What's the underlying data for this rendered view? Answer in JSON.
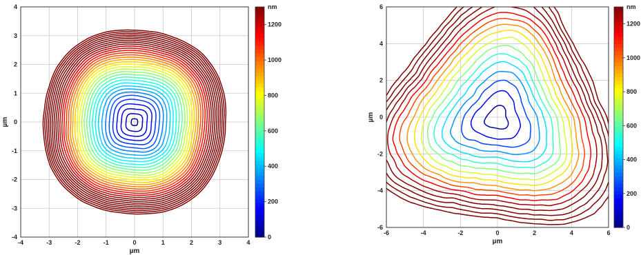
{
  "chart_data": [
    {
      "type": "contour",
      "xlabel": "µm",
      "ylabel": "µm",
      "xlim": [
        -4,
        4
      ],
      "ylim": [
        -4,
        4
      ],
      "xticks": [
        -4,
        -3,
        -2,
        -1,
        0,
        1,
        2,
        3,
        4
      ],
      "yticks": [
        -4,
        -3,
        -2,
        -1,
        0,
        1,
        2,
        3,
        4
      ],
      "grid": true,
      "colorbar": {
        "unit": "nm",
        "range": [
          0,
          1300
        ],
        "ticks": [
          0,
          200,
          400,
          600,
          800,
          1000,
          1200
        ]
      },
      "contour_interval_nm": 50,
      "minimum_at": [
        0,
        0
      ],
      "minimum_nm": 0,
      "max_corner_nm": 1300,
      "colormap": "jet"
    },
    {
      "type": "contour",
      "xlabel": "µm",
      "ylabel": "µm",
      "xlim": [
        -6,
        6
      ],
      "ylim": [
        -6,
        6
      ],
      "xticks": [
        -6,
        -4,
        -2,
        0,
        2,
        4,
        6
      ],
      "yticks": [
        -6,
        -4,
        -2,
        0,
        2,
        4,
        6
      ],
      "grid": true,
      "colorbar": {
        "unit": "nm",
        "range": [
          0,
          1300
        ],
        "ticks": [
          0,
          200,
          400,
          600,
          800,
          1000,
          1200
        ]
      },
      "contour_interval_nm": 100,
      "minimum_at": [
        0,
        0
      ],
      "minimum_nm": 0,
      "max_corner_nm": 1300,
      "colormap": "jet"
    }
  ]
}
